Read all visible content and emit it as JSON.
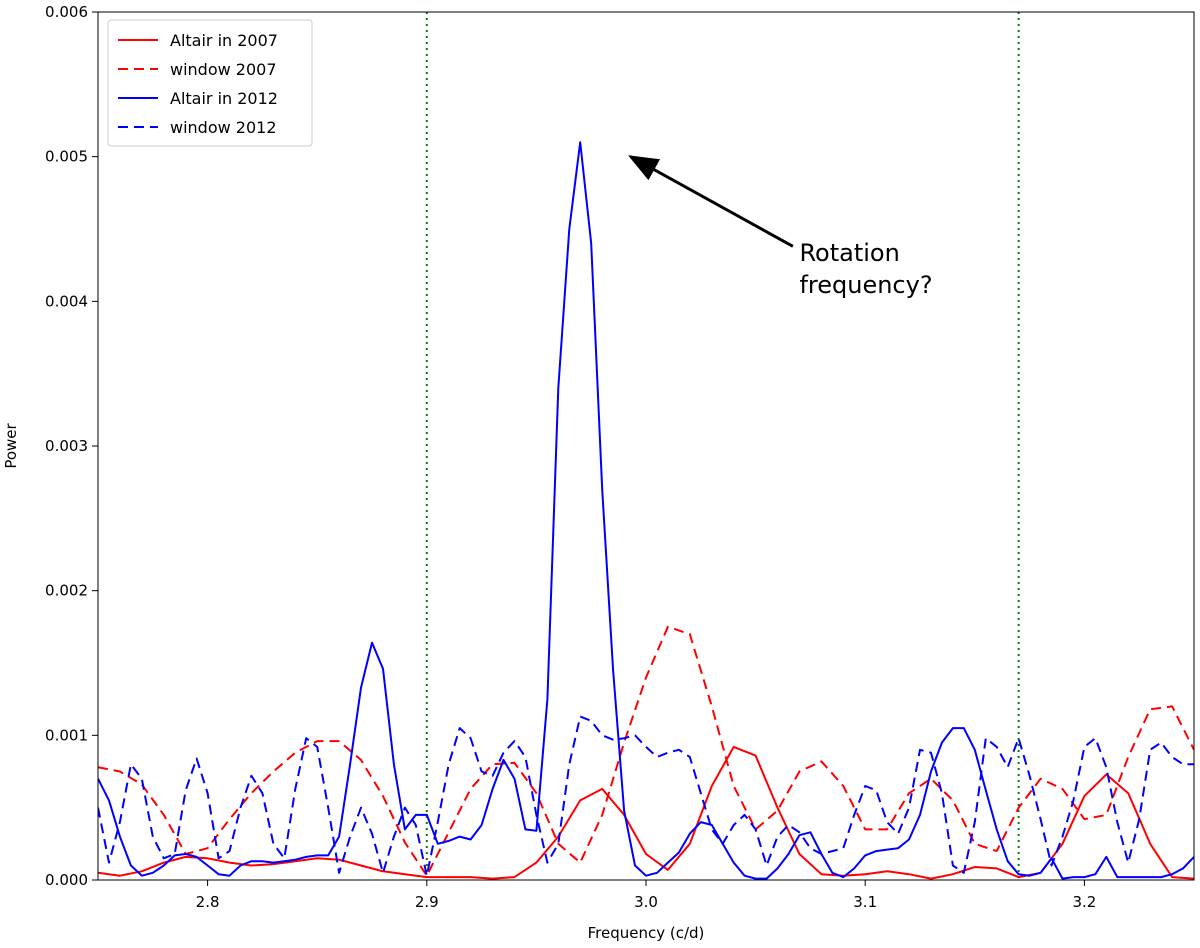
{
  "chart_data": {
    "type": "line",
    "title": "",
    "xlabel": "Frequency (c/d)",
    "ylabel": "Power",
    "xlim": [
      2.75,
      3.25
    ],
    "ylim": [
      0.0,
      0.006
    ],
    "x_ticks": [
      "2.8",
      "2.9",
      "3.0",
      "3.1",
      "3.2"
    ],
    "x_tick_values": [
      2.8,
      2.9,
      3.0,
      3.1,
      3.2
    ],
    "y_ticks": [
      "0.000",
      "0.001",
      "0.002",
      "0.003",
      "0.004",
      "0.005",
      "0.006"
    ],
    "y_tick_values": [
      0.0,
      0.001,
      0.002,
      0.003,
      0.004,
      0.005,
      0.006
    ],
    "grid": false,
    "legend_position": "top-left",
    "vlines": [
      {
        "x": 2.9,
        "color": "#008000",
        "style": "dotted"
      },
      {
        "x": 3.17,
        "color": "#008000",
        "style": "dotted"
      }
    ],
    "annotation": {
      "text_lines": [
        "Rotation",
        "frequency?"
      ],
      "text_x": 3.07,
      "text_y": 0.00428,
      "arrow_start": [
        3.067,
        0.00438
      ],
      "arrow_end": [
        2.993,
        0.005
      ]
    },
    "series": [
      {
        "name": "Altair in 2007",
        "color": "#ff0000",
        "dash": "solid",
        "x": [
          2.75,
          2.76,
          2.77,
          2.78,
          2.79,
          2.8,
          2.81,
          2.82,
          2.83,
          2.84,
          2.85,
          2.86,
          2.87,
          2.88,
          2.89,
          2.9,
          2.91,
          2.92,
          2.93,
          2.94,
          2.95,
          2.96,
          2.97,
          2.98,
          2.99,
          3.0,
          3.01,
          3.02,
          3.03,
          3.04,
          3.05,
          3.06,
          3.07,
          3.08,
          3.09,
          3.1,
          3.11,
          3.12,
          3.13,
          3.14,
          3.15,
          3.16,
          3.17,
          3.18,
          3.19,
          3.2,
          3.21,
          3.22,
          3.23,
          3.24,
          3.25
        ],
        "y": [
          5e-05,
          3e-05,
          6e-05,
          0.00012,
          0.00016,
          0.00015,
          0.00012,
          0.0001,
          0.00011,
          0.00013,
          0.00015,
          0.00014,
          0.0001,
          6e-05,
          4e-05,
          2e-05,
          2e-05,
          2e-05,
          1e-05,
          2e-05,
          0.00012,
          0.0003,
          0.00055,
          0.00063,
          0.00045,
          0.00018,
          7e-05,
          0.00025,
          0.00065,
          0.00092,
          0.00086,
          0.0005,
          0.00018,
          4e-05,
          3e-05,
          4e-05,
          6e-05,
          4e-05,
          1e-05,
          4e-05,
          9e-05,
          8e-05,
          2e-05,
          5e-05,
          0.00025,
          0.00058,
          0.00073,
          0.0006,
          0.00025,
          2e-05,
          1e-05
        ]
      },
      {
        "name": "window 2007",
        "color": "#ff0000",
        "dash": "dashed",
        "x": [
          2.75,
          2.76,
          2.77,
          2.78,
          2.79,
          2.8,
          2.81,
          2.82,
          2.83,
          2.84,
          2.85,
          2.86,
          2.87,
          2.88,
          2.89,
          2.9,
          2.91,
          2.92,
          2.93,
          2.94,
          2.95,
          2.96,
          2.97,
          2.98,
          2.99,
          3.0,
          3.01,
          3.02,
          3.03,
          3.04,
          3.05,
          3.06,
          3.07,
          3.08,
          3.09,
          3.1,
          3.11,
          3.12,
          3.13,
          3.14,
          3.15,
          3.16,
          3.17,
          3.18,
          3.19,
          3.2,
          3.21,
          3.22,
          3.23,
          3.24,
          3.25
        ],
        "y": [
          0.00078,
          0.00075,
          0.00066,
          0.00045,
          0.00018,
          0.00022,
          0.00042,
          0.0006,
          0.00075,
          0.00088,
          0.00096,
          0.00096,
          0.00083,
          0.00058,
          0.00026,
          3e-05,
          0.00033,
          0.00063,
          0.0008,
          0.00081,
          0.0006,
          0.00025,
          0.00012,
          0.00045,
          0.00095,
          0.0014,
          0.00175,
          0.0017,
          0.0012,
          0.00065,
          0.00035,
          0.00048,
          0.00075,
          0.00082,
          0.00065,
          0.00035,
          0.00035,
          0.0006,
          0.0007,
          0.00055,
          0.00025,
          0.0002,
          0.0005,
          0.0007,
          0.00063,
          0.00042,
          0.00045,
          0.00085,
          0.00118,
          0.0012,
          0.0009
        ]
      },
      {
        "name": "Altair in 2012",
        "color": "#0000ff",
        "dash": "solid",
        "x": [
          2.75,
          2.755,
          2.76,
          2.765,
          2.77,
          2.775,
          2.78,
          2.785,
          2.79,
          2.795,
          2.8,
          2.805,
          2.81,
          2.815,
          2.82,
          2.825,
          2.83,
          2.835,
          2.84,
          2.845,
          2.85,
          2.855,
          2.86,
          2.865,
          2.87,
          2.875,
          2.88,
          2.885,
          2.89,
          2.895,
          2.9,
          2.905,
          2.91,
          2.915,
          2.92,
          2.925,
          2.93,
          2.935,
          2.94,
          2.945,
          2.95,
          2.955,
          2.96,
          2.965,
          2.97,
          2.975,
          2.98,
          2.985,
          2.99,
          2.995,
          3.0,
          3.005,
          3.01,
          3.015,
          3.02,
          3.025,
          3.03,
          3.035,
          3.04,
          3.045,
          3.05,
          3.055,
          3.06,
          3.065,
          3.07,
          3.075,
          3.08,
          3.085,
          3.09,
          3.095,
          3.1,
          3.105,
          3.11,
          3.115,
          3.12,
          3.125,
          3.13,
          3.135,
          3.14,
          3.145,
          3.15,
          3.155,
          3.16,
          3.165,
          3.17,
          3.175,
          3.18,
          3.185,
          3.19,
          3.195,
          3.2,
          3.205,
          3.21,
          3.215,
          3.22,
          3.225,
          3.23,
          3.235,
          3.24,
          3.245,
          3.25
        ],
        "y": [
          0.0007,
          0.00055,
          0.0003,
          0.0001,
          3e-05,
          5e-05,
          0.0001,
          0.00017,
          0.00018,
          0.00016,
          0.0001,
          4e-05,
          3e-05,
          0.0001,
          0.00013,
          0.00013,
          0.00012,
          0.00013,
          0.00014,
          0.00016,
          0.00017,
          0.00017,
          0.0003,
          0.0008,
          0.00133,
          0.00164,
          0.00146,
          0.0008,
          0.00035,
          0.00045,
          0.00045,
          0.00025,
          0.00027,
          0.0003,
          0.00028,
          0.00038,
          0.00063,
          0.00083,
          0.0007,
          0.00035,
          0.00034,
          0.00125,
          0.0034,
          0.0045,
          0.0051,
          0.0044,
          0.0027,
          0.00145,
          0.00048,
          0.0001,
          3e-05,
          5e-05,
          0.00012,
          0.00019,
          0.00032,
          0.0004,
          0.00038,
          0.00025,
          0.00012,
          3e-05,
          1e-05,
          1e-05,
          8e-05,
          0.00018,
          0.00031,
          0.00033,
          0.00018,
          5e-05,
          2e-05,
          8e-05,
          0.00017,
          0.0002,
          0.00021,
          0.00022,
          0.00028,
          0.00045,
          0.00075,
          0.00095,
          0.00105,
          0.00105,
          0.0009,
          0.00062,
          0.00035,
          0.00013,
          4e-05,
          3e-05,
          5e-05,
          0.00015,
          1e-05,
          2e-05,
          2e-05,
          4e-05,
          0.00016,
          2e-05,
          2e-05,
          2e-05,
          2e-05,
          2e-05,
          4e-05,
          8e-05,
          0.00016
        ]
      },
      {
        "name": "window 2012",
        "color": "#0000ff",
        "dash": "dashed",
        "x": [
          2.75,
          2.755,
          2.76,
          2.765,
          2.77,
          2.775,
          2.78,
          2.785,
          2.79,
          2.795,
          2.8,
          2.805,
          2.81,
          2.815,
          2.82,
          2.825,
          2.83,
          2.835,
          2.84,
          2.845,
          2.85,
          2.855,
          2.86,
          2.865,
          2.87,
          2.875,
          2.88,
          2.885,
          2.89,
          2.895,
          2.9,
          2.905,
          2.91,
          2.915,
          2.92,
          2.925,
          2.93,
          2.935,
          2.94,
          2.945,
          2.95,
          2.955,
          2.96,
          2.965,
          2.97,
          2.975,
          2.98,
          2.985,
          2.99,
          2.995,
          3.0,
          3.005,
          3.01,
          3.015,
          3.02,
          3.025,
          3.03,
          3.035,
          3.04,
          3.045,
          3.05,
          3.055,
          3.06,
          3.065,
          3.07,
          3.075,
          3.08,
          3.085,
          3.09,
          3.095,
          3.1,
          3.105,
          3.11,
          3.115,
          3.12,
          3.125,
          3.13,
          3.135,
          3.14,
          3.145,
          3.15,
          3.155,
          3.16,
          3.165,
          3.17,
          3.175,
          3.18,
          3.185,
          3.19,
          3.195,
          3.2,
          3.205,
          3.21,
          3.215,
          3.22,
          3.225,
          3.23,
          3.235,
          3.24,
          3.245,
          3.25
        ],
        "y": [
          0.0005,
          0.00012,
          0.0004,
          0.0008,
          0.0007,
          0.0003,
          0.00015,
          0.00018,
          0.00062,
          0.00084,
          0.0006,
          0.00015,
          0.0002,
          0.0005,
          0.00072,
          0.0006,
          0.00025,
          0.00015,
          0.00063,
          0.00098,
          0.00092,
          0.0005,
          5e-05,
          0.0003,
          0.0005,
          0.00032,
          5e-05,
          0.0003,
          0.0005,
          0.00038,
          3e-05,
          0.0004,
          0.0008,
          0.00105,
          0.00098,
          0.00075,
          0.00072,
          0.00088,
          0.00096,
          0.00085,
          0.00045,
          0.00012,
          0.00025,
          0.0008,
          0.00113,
          0.0011,
          0.001,
          0.00097,
          0.00098,
          0.001,
          0.00092,
          0.00085,
          0.00088,
          0.0009,
          0.00085,
          0.0006,
          0.00035,
          0.00025,
          0.00038,
          0.00045,
          0.00035,
          0.0001,
          0.0003,
          0.00038,
          0.00033,
          0.00022,
          0.00018,
          0.0002,
          0.00022,
          0.00045,
          0.00065,
          0.00062,
          0.0004,
          0.00032,
          0.0005,
          0.0009,
          0.00088,
          0.0006,
          0.0001,
          5e-05,
          0.0004,
          0.00098,
          0.00092,
          0.00078,
          0.00098,
          0.00072,
          0.00042,
          0.0001,
          0.0003,
          0.00055,
          0.00092,
          0.00098,
          0.00078,
          0.0004,
          0.00012,
          0.00042,
          0.0009,
          0.00095,
          0.00085,
          0.0008,
          0.0008
        ]
      }
    ]
  }
}
